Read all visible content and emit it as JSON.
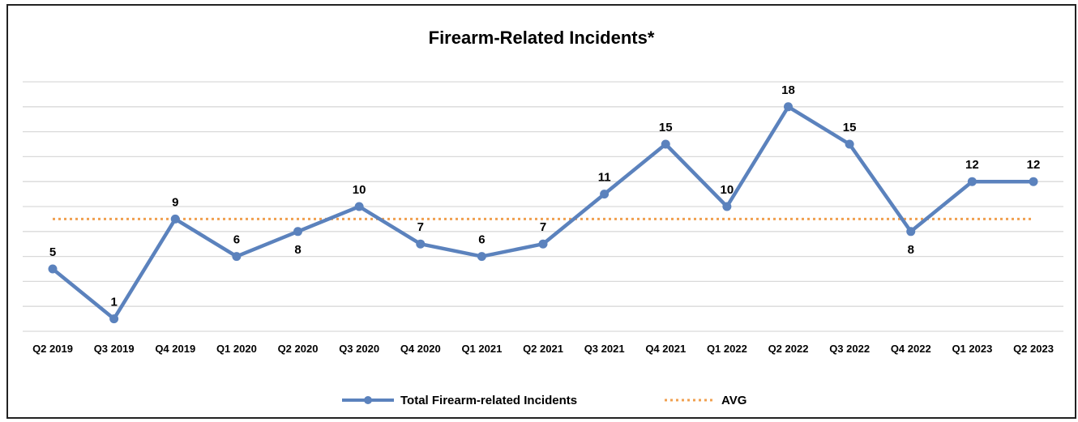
{
  "colors": {
    "series": "#5B82BD",
    "avg": "#F0A050",
    "grid": "#D9D9D9",
    "frame": "#222222"
  },
  "chart_data": {
    "type": "line",
    "title": "Firearm-Related Incidents*",
    "categories": [
      "Q2 2019",
      "Q3 2019",
      "Q4 2019",
      "Q1 2020",
      "Q2 2020",
      "Q3 2020",
      "Q4 2020",
      "Q1 2021",
      "Q2 2021",
      "Q3 2021",
      "Q4 2021",
      "Q1 2022",
      "Q2 2022",
      "Q3 2022",
      "Q4 2022",
      "Q1 2023",
      "Q2 2023"
    ],
    "series": [
      {
        "name": "Total Firearm-related Incidents",
        "values": [
          5,
          1,
          9,
          6,
          8,
          10,
          7,
          6,
          7,
          11,
          15,
          10,
          18,
          15,
          8,
          12,
          12
        ],
        "color": "#5B82BD",
        "style": "solid-with-markers"
      },
      {
        "name": "AVG",
        "values": [
          9,
          9,
          9,
          9,
          9,
          9,
          9,
          9,
          9,
          9,
          9,
          9,
          9,
          9,
          9,
          9,
          9
        ],
        "color": "#F0A050",
        "style": "dotted"
      }
    ],
    "data_label_placement": [
      "above",
      "above",
      "above",
      "above",
      "below",
      "above",
      "above",
      "above",
      "above",
      "above",
      "above",
      "above",
      "above",
      "above",
      "below",
      "above",
      "above"
    ],
    "ylim": [
      0,
      20
    ],
    "grid": true,
    "legend_position": "bottom",
    "xlabel": "",
    "ylabel": ""
  }
}
